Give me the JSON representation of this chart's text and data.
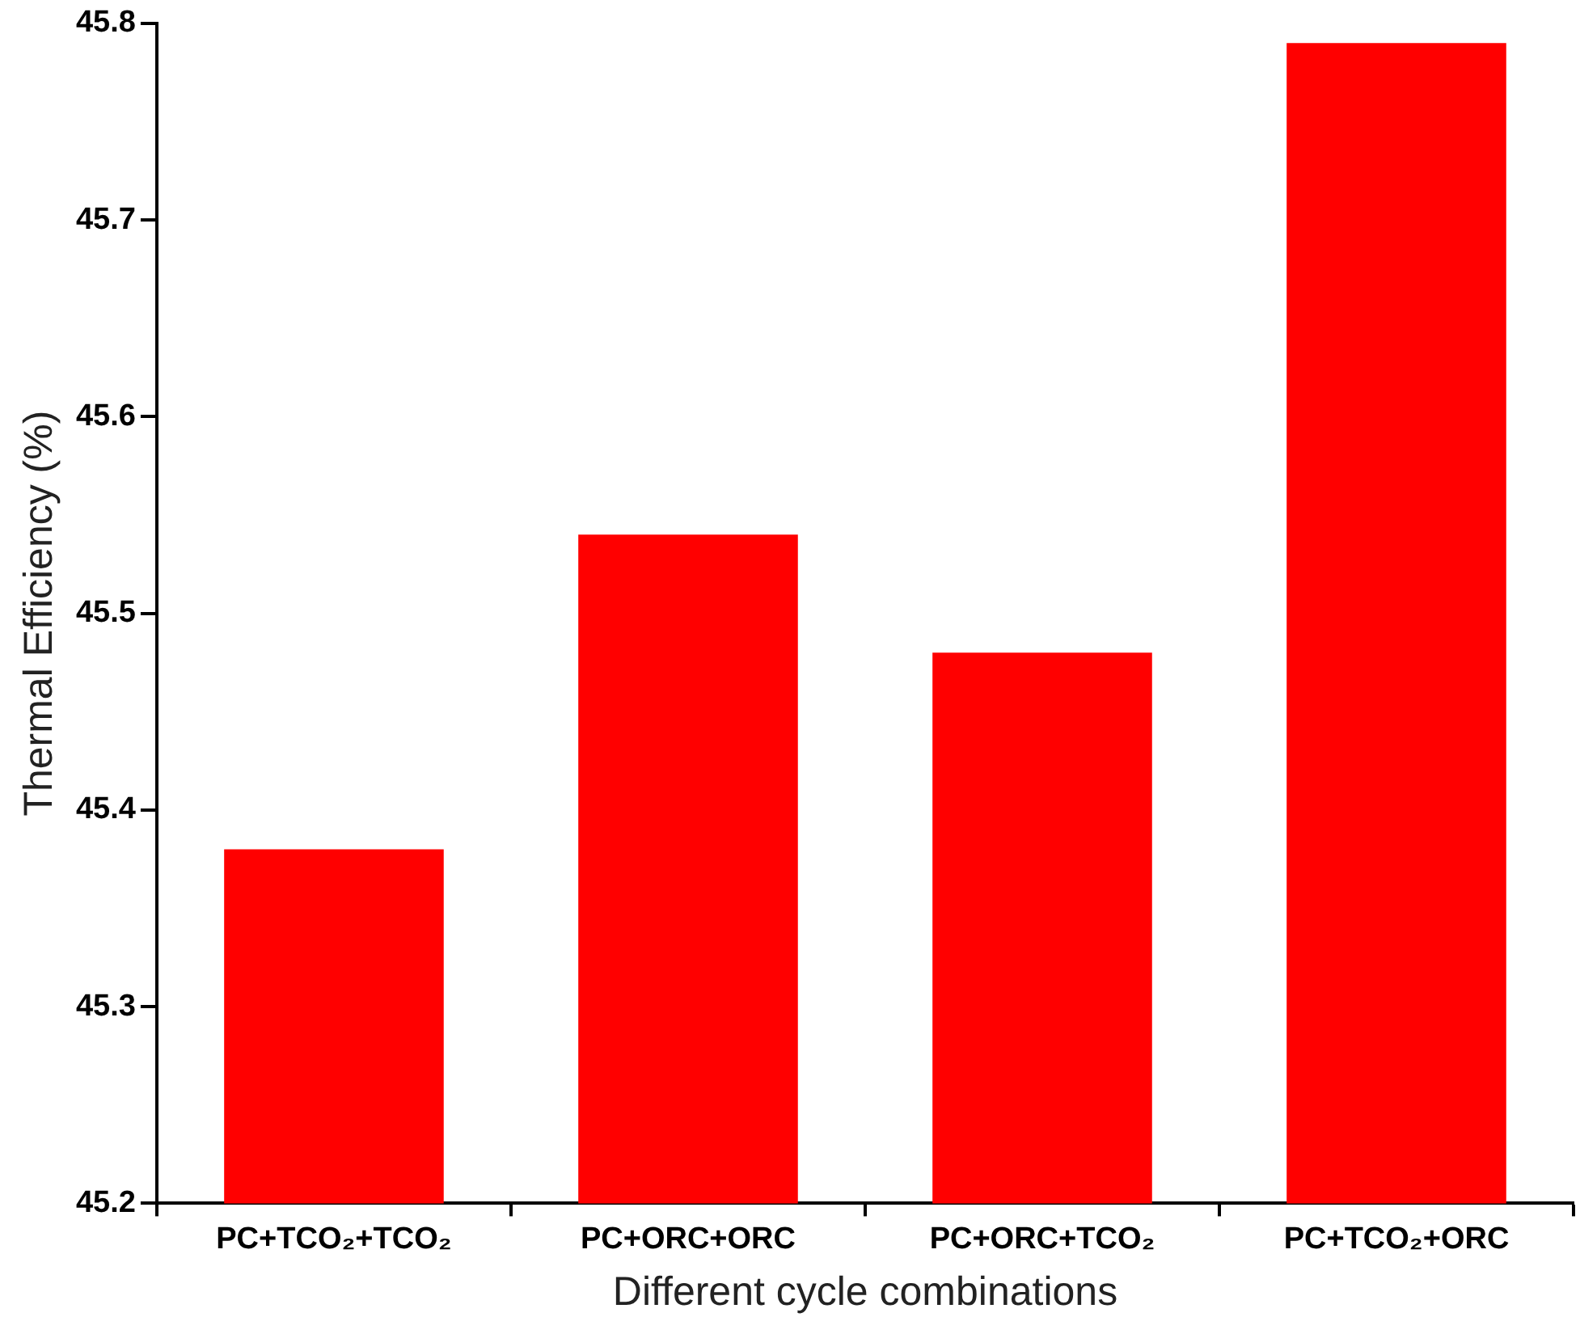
{
  "chart_data": {
    "type": "bar",
    "xlabel": "Different cycle combinations",
    "ylabel": "Thermal Efficiency (%)",
    "categories": [
      "PC+TCO₂+TCO₂",
      "PC+ORC+ORC",
      "PC+ORC+TCO₂",
      "PC+TCO₂+ORC"
    ],
    "values": [
      45.38,
      45.54,
      45.48,
      45.79
    ],
    "color": "#ff0000",
    "ylim": [
      45.2,
      45.8
    ],
    "yticks": [
      45.2,
      45.3,
      45.4,
      45.5,
      45.6,
      45.7,
      45.8
    ],
    "grid": false,
    "legend": false
  }
}
